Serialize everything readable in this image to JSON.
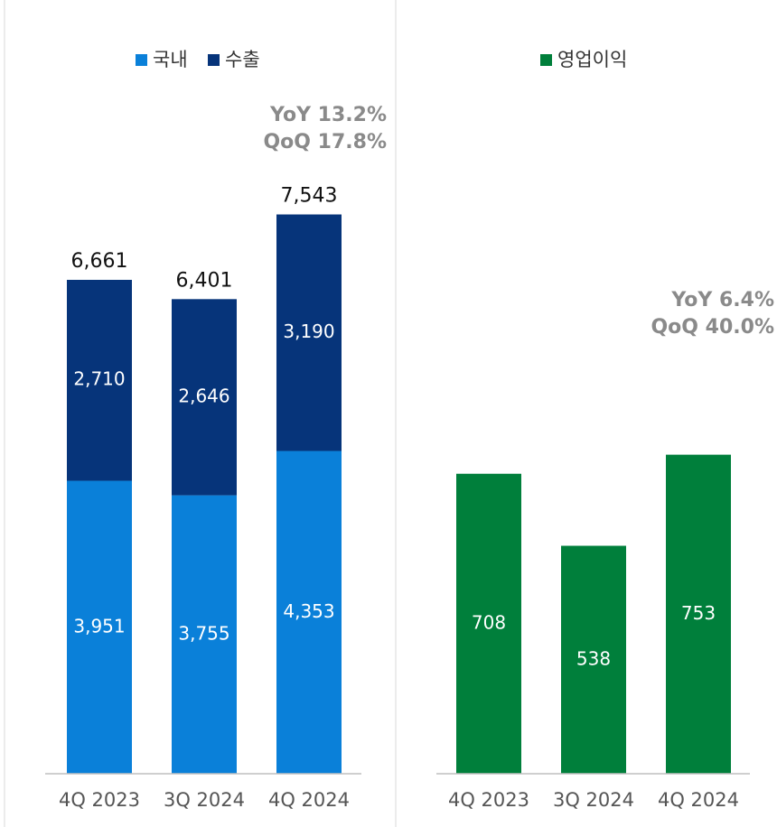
{
  "chart_data": [
    {
      "type": "bar",
      "stacked": true,
      "categories": [
        "4Q 2023",
        "3Q 2024",
        "4Q 2024"
      ],
      "series": [
        {
          "name": "국내",
          "color": "#0a80d9",
          "values": [
            3951,
            3755,
            4353
          ],
          "value_labels": [
            "3,951",
            "3,755",
            "4,353"
          ]
        },
        {
          "name": "수출",
          "color": "#06347a",
          "values": [
            2710,
            2646,
            3190
          ],
          "value_labels": [
            "2,710",
            "2,646",
            "3,190"
          ]
        }
      ],
      "totals": [
        6661,
        6401,
        7543
      ],
      "total_labels": [
        "6,661",
        "6,401",
        "7,543"
      ],
      "annotations": [
        "YoY 13.2%",
        "QoQ 17.8%"
      ],
      "ylim": [
        0,
        8000
      ]
    },
    {
      "type": "bar",
      "categories": [
        "4Q 2023",
        "3Q 2024",
        "4Q 2024"
      ],
      "series": [
        {
          "name": "영업이익",
          "color": "#007f3b",
          "values": [
            708,
            538,
            753
          ]
        }
      ],
      "annotations": [
        "YoY 6.4%",
        "QoQ 40.0%"
      ],
      "ylim": [
        0,
        1400
      ]
    }
  ]
}
